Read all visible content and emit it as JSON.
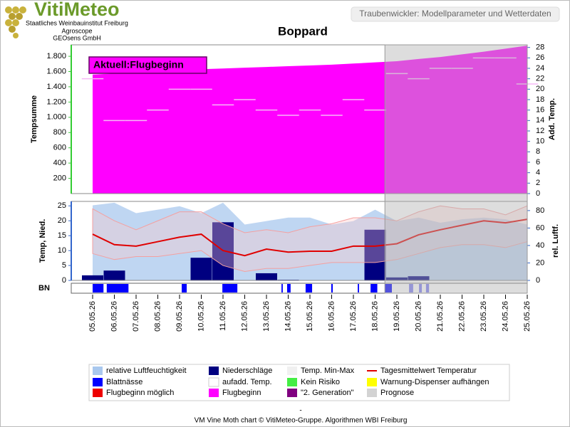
{
  "header": {
    "logo": "VitiMeteo",
    "institutes": [
      "Staatliches Weinbauinstitut Freiburg",
      "Agroscope",
      "GEOsens GmbH"
    ],
    "app_title": "Traubenwickler: Modellparameter und Wetterdaten"
  },
  "chart_data": [
    {
      "type": "area",
      "title": "Boppard",
      "ylabel": "Tempsumme",
      "y2label": "Add. Temp.",
      "annotation": "Aktuell:Flugbeginn",
      "categories": [
        "05.05.26",
        "06.05.26",
        "07.05.26",
        "08.05.26",
        "09.05.26",
        "10.05.26",
        "11.05.26",
        "12.05.26",
        "13.05.26",
        "14.05.26",
        "15.05.26",
        "16.05.26",
        "17.05.26",
        "18.05.26",
        "19.05.26",
        "20.05.26",
        "21.05.26",
        "22.05.26",
        "23.05.26",
        "24.05.26",
        "25.05.26"
      ],
      "series": [
        {
          "color": "#ff00ff",
          "values": [
            1560,
            1575,
            1590,
            1600,
            1615,
            1630,
            1640,
            1650,
            1660,
            1670,
            1680,
            1690,
            1705,
            1720,
            1735,
            1765,
            1790,
            1825,
            1860,
            1900,
            1940
          ]
        },
        {
          "color": "#f7b8f7",
          "axis": "y2",
          "values": [
            22,
            14,
            14,
            16,
            20,
            20,
            17,
            18,
            16,
            15,
            16,
            15,
            18,
            16,
            23,
            22,
            24,
            24,
            26,
            26,
            21
          ]
        }
      ],
      "ylim": [
        0,
        1950
      ],
      "yticks": [
        200,
        400,
        600,
        800,
        {
          "value": 1000,
          "label": "1.000"
        },
        {
          "value": 1200,
          "label": "1.200"
        },
        {
          "value": 1400,
          "label": "1.400"
        },
        {
          "value": 1600,
          "label": "1.600"
        },
        {
          "value": 1800,
          "label": "1.800"
        }
      ],
      "y2lim": [
        0,
        28.5
      ],
      "y2ticks": [
        0,
        2,
        4,
        6,
        8,
        10,
        12,
        14,
        16,
        18,
        20,
        22,
        24,
        26,
        28
      ]
    },
    {
      "type": "combo",
      "ylabel": "Temp, Nied.",
      "y2label": "rel. Luftf.",
      "series": [
        {
          "kind": "area",
          "axis": "y2",
          "color": "#a9c8ee",
          "values": [
            86,
            89,
            77,
            81,
            85,
            77,
            89,
            64,
            68,
            72,
            72,
            64,
            68,
            81,
            68,
            72,
            66,
            70,
            72,
            70,
            64
          ]
        },
        {
          "kind": "bar",
          "color": "#000080",
          "values": [
            1.7,
            3.3,
            0,
            0,
            0,
            7.6,
            19.5,
            0,
            2.4,
            0.2,
            0.1,
            0,
            0,
            17,
            1,
            1.4,
            0,
            0,
            0,
            0,
            0
          ]
        },
        {
          "kind": "band",
          "color": "#f4a0a0",
          "min": [
            9,
            7,
            8,
            8,
            9,
            10,
            5,
            3,
            4,
            4,
            5,
            6,
            6,
            6,
            7,
            9,
            11,
            12,
            12,
            11,
            13
          ],
          "max": [
            24,
            20,
            17,
            20,
            23,
            23,
            19,
            16,
            17,
            16,
            18,
            19,
            21,
            21,
            20,
            23,
            25,
            24,
            24,
            22,
            25
          ]
        },
        {
          "kind": "line",
          "color": "#e00000",
          "values": [
            15.5,
            12,
            11.5,
            13,
            14.5,
            15.5,
            10,
            8.3,
            10.5,
            9.5,
            9.8,
            9.8,
            11.5,
            11.5,
            12.3,
            15.3,
            17,
            18.5,
            20,
            19.3,
            20.5
          ]
        }
      ],
      "ylim": [
        0,
        26.5
      ],
      "yticks": [
        0,
        5,
        10,
        15,
        20,
        25
      ],
      "y2lim": [
        0,
        90.5
      ],
      "y2ticks": [
        0,
        20,
        40,
        60,
        80
      ]
    },
    {
      "type": "timeline",
      "ylabel": "BN",
      "color": "#0000ff",
      "forecast_color": "#7f7ff0",
      "intervals": [
        [
          0,
          0.5
        ],
        [
          0.65,
          1.65
        ],
        [
          4.1,
          4.33
        ],
        [
          5.97,
          6.66
        ],
        [
          8.69,
          8.75
        ],
        [
          8.95,
          9.11
        ],
        [
          9.8,
          10.1
        ],
        [
          10.98,
          11.05
        ],
        [
          12.2,
          12.26
        ],
        [
          12.79,
          13.1
        ],
        [
          13.44,
          13.77
        ],
        [
          14.56,
          14.75
        ],
        [
          15.02,
          15.15
        ],
        [
          15.34,
          15.48
        ]
      ]
    }
  ],
  "prognosis_start": 13.45,
  "legend": [
    {
      "name": "relative Luftfeuchtigkeit",
      "color": "#a9c8ee"
    },
    {
      "name": "Niederschläge",
      "color": "#000080"
    },
    {
      "name": "Temp. Min-Max",
      "color": "#f0f0f0"
    },
    {
      "name": "Tagesmittelwert Temperatur",
      "color": "#e00000",
      "line": true
    },
    {
      "name": "Blattnässe",
      "color": "#0000ff"
    },
    {
      "name": "aufadd. Temp.",
      "color": "#ffffff"
    },
    {
      "name": "Kein Risiko",
      "color": "#44ee44"
    },
    {
      "name": "Warnung-Dispenser aufhängen",
      "color": "#ffff00"
    },
    {
      "name": "Flugbeginn möglich",
      "color": "#ee0000"
    },
    {
      "name": "Flugbeginn",
      "color": "#ff00ff"
    },
    {
      "name": "\"2. Generation\"",
      "color": "#800080"
    },
    {
      "name": "Prognose",
      "color": "#d3d3d3"
    }
  ],
  "footer": {
    "dash": "-",
    "text": "VM Vine Moth chart © VitiMeteo-Gruppe. Algorithmen WBI Freiburg"
  }
}
